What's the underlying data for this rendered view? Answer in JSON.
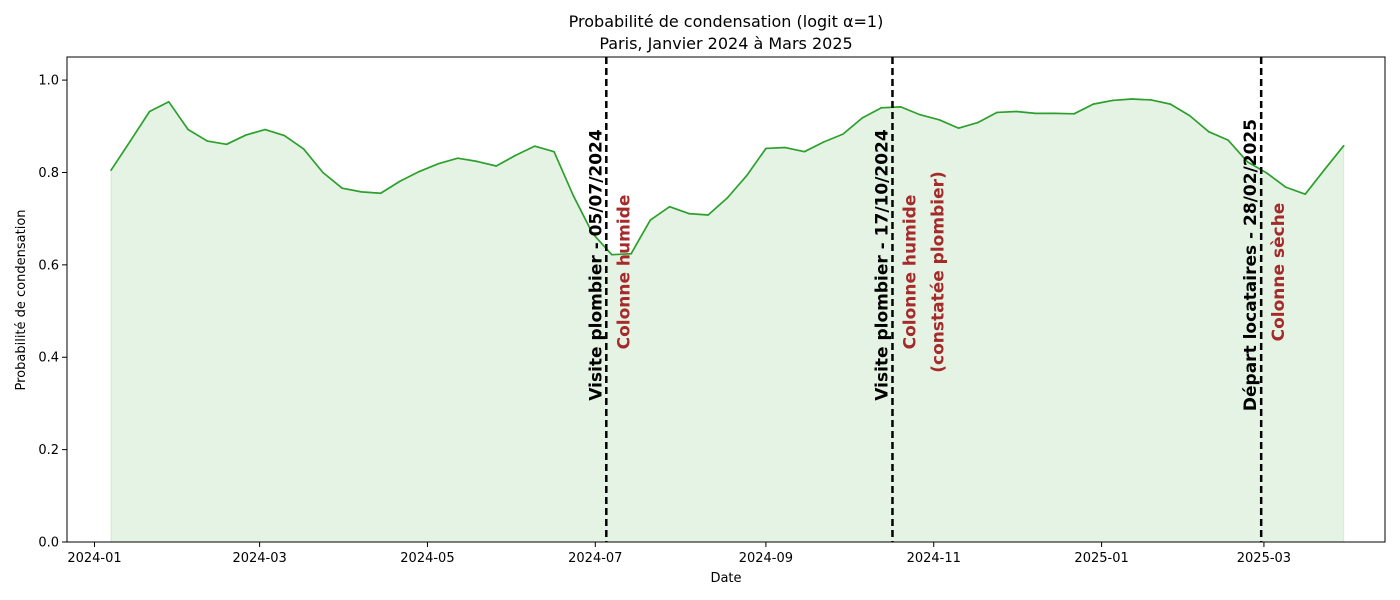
{
  "chart_data": {
    "type": "area",
    "title": "Probabilité de condensation (logit α=1)",
    "subtitle": "Paris, Janvier 2024 à Mars 2025",
    "xlabel": "Date",
    "ylabel": "Probabilité de condensation",
    "xlim": [
      "2023-12-22",
      "2025-04-14"
    ],
    "ylim": [
      0,
      1.05
    ],
    "grid": false,
    "x_ticks": [
      {
        "date": "2024-01-01",
        "label": "2024-01"
      },
      {
        "date": "2024-03-01",
        "label": "2024-03"
      },
      {
        "date": "2024-05-01",
        "label": "2024-05"
      },
      {
        "date": "2024-07-01",
        "label": "2024-07"
      },
      {
        "date": "2024-09-01",
        "label": "2024-09"
      },
      {
        "date": "2024-11-01",
        "label": "2024-11"
      },
      {
        "date": "2025-01-01",
        "label": "2025-01"
      },
      {
        "date": "2025-03-01",
        "label": "2025-03"
      }
    ],
    "y_ticks": [
      {
        "value": 0.0,
        "label": "0.0"
      },
      {
        "value": 0.2,
        "label": "0.2"
      },
      {
        "value": 0.4,
        "label": "0.4"
      },
      {
        "value": 0.6,
        "label": "0.6"
      },
      {
        "value": 0.8,
        "label": "0.8"
      },
      {
        "value": 1.0,
        "label": "1.0"
      }
    ],
    "series": [
      {
        "color": "#2ca02c",
        "fill_color": "#2ca02c",
        "fill_opacity": 0.12,
        "points": [
          [
            "2024-01-07",
            0.805
          ],
          [
            "2024-01-14",
            0.868
          ],
          [
            "2024-01-21",
            0.932
          ],
          [
            "2024-01-28",
            0.953
          ],
          [
            "2024-02-04",
            0.893
          ],
          [
            "2024-02-11",
            0.868
          ],
          [
            "2024-02-18",
            0.861
          ],
          [
            "2024-02-25",
            0.881
          ],
          [
            "2024-03-03",
            0.893
          ],
          [
            "2024-03-10",
            0.88
          ],
          [
            "2024-03-17",
            0.851
          ],
          [
            "2024-03-24",
            0.8
          ],
          [
            "2024-03-31",
            0.766
          ],
          [
            "2024-04-07",
            0.758
          ],
          [
            "2024-04-14",
            0.755
          ],
          [
            "2024-04-21",
            0.781
          ],
          [
            "2024-04-28",
            0.802
          ],
          [
            "2024-05-05",
            0.819
          ],
          [
            "2024-05-12",
            0.831
          ],
          [
            "2024-05-19",
            0.824
          ],
          [
            "2024-05-26",
            0.814
          ],
          [
            "2024-06-02",
            0.837
          ],
          [
            "2024-06-09",
            0.857
          ],
          [
            "2024-06-16",
            0.845
          ],
          [
            "2024-06-23",
            0.75
          ],
          [
            "2024-06-30",
            0.668
          ],
          [
            "2024-07-07",
            0.622
          ],
          [
            "2024-07-14",
            0.624
          ],
          [
            "2024-07-21",
            0.697
          ],
          [
            "2024-07-28",
            0.726
          ],
          [
            "2024-08-04",
            0.711
          ],
          [
            "2024-08-11",
            0.708
          ],
          [
            "2024-08-18",
            0.745
          ],
          [
            "2024-08-25",
            0.793
          ],
          [
            "2024-09-01",
            0.852
          ],
          [
            "2024-09-08",
            0.854
          ],
          [
            "2024-09-15",
            0.845
          ],
          [
            "2024-09-22",
            0.866
          ],
          [
            "2024-09-29",
            0.883
          ],
          [
            "2024-10-06",
            0.918
          ],
          [
            "2024-10-13",
            0.94
          ],
          [
            "2024-10-20",
            0.942
          ],
          [
            "2024-10-27",
            0.925
          ],
          [
            "2024-11-03",
            0.914
          ],
          [
            "2024-11-10",
            0.896
          ],
          [
            "2024-11-17",
            0.908
          ],
          [
            "2024-11-24",
            0.93
          ],
          [
            "2024-12-01",
            0.932
          ],
          [
            "2024-12-08",
            0.928
          ],
          [
            "2024-12-15",
            0.928
          ],
          [
            "2024-12-22",
            0.927
          ],
          [
            "2024-12-29",
            0.948
          ],
          [
            "2025-01-05",
            0.956
          ],
          [
            "2025-01-12",
            0.959
          ],
          [
            "2025-01-19",
            0.957
          ],
          [
            "2025-01-26",
            0.948
          ],
          [
            "2025-02-02",
            0.923
          ],
          [
            "2025-02-09",
            0.888
          ],
          [
            "2025-02-16",
            0.87
          ],
          [
            "2025-02-23",
            0.823
          ],
          [
            "2025-03-02",
            0.799
          ],
          [
            "2025-03-09",
            0.768
          ],
          [
            "2025-03-16",
            0.753
          ],
          [
            "2025-03-23",
            0.806
          ],
          [
            "2025-03-30",
            0.858
          ]
        ]
      }
    ],
    "annotations": [
      {
        "date": "2024-07-05",
        "label": "Visite plombier   - 05/07/2024",
        "status_lines": [
          "Colonne humide"
        ],
        "status_color": "#a52a2a"
      },
      {
        "date": "2024-10-17",
        "label": "Visite plombier   - 17/10/2024",
        "status_lines": [
          "Colonne humide",
          "(constatée plombier)"
        ],
        "status_color": "#a52a2a"
      },
      {
        "date": "2025-02-28",
        "label": "Départ locataires - 28/02/2025",
        "status_lines": [
          "Colonne sèche"
        ],
        "status_color": "#a52a2a"
      }
    ]
  }
}
